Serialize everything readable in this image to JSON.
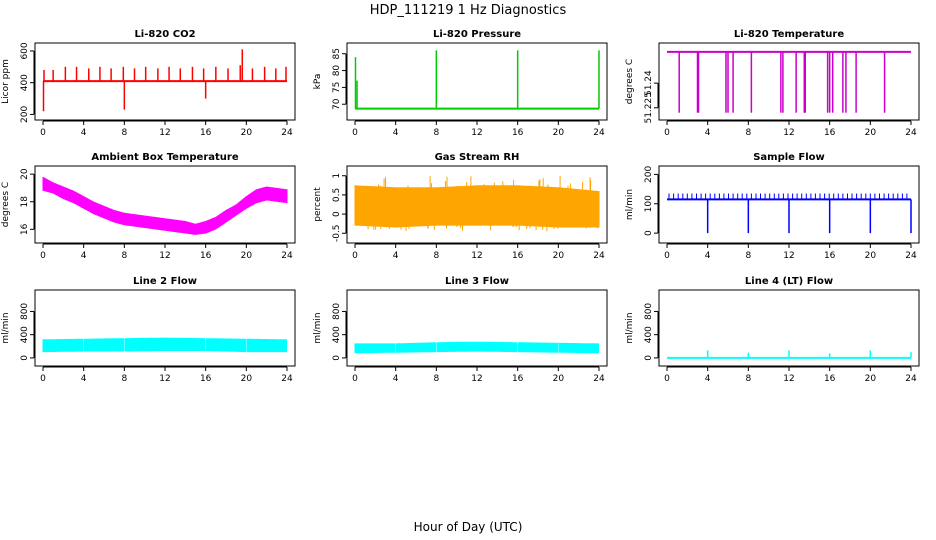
{
  "figure": {
    "title": "HDP_111219  1 Hz Diagnostics",
    "xlabel": "Hour of Day (UTC)"
  },
  "chart_data": [
    {
      "type": "line",
      "title": "Li-820 CO2",
      "ylabel": "Licor ppm",
      "color": "#ff0000",
      "xlim": [
        0,
        24
      ],
      "xticks": [
        0,
        4,
        8,
        12,
        16,
        20,
        24
      ],
      "ylim": [
        190,
        625
      ],
      "yticks": [
        200,
        400,
        600
      ],
      "base": 410,
      "spikes": [
        {
          "x": 0.05,
          "y": 220
        },
        {
          "x": 0.1,
          "y": 480
        },
        {
          "x": 1.0,
          "y": 480
        },
        {
          "x": 2.2,
          "y": 500
        },
        {
          "x": 3.3,
          "y": 500
        },
        {
          "x": 4.5,
          "y": 490
        },
        {
          "x": 5.6,
          "y": 500
        },
        {
          "x": 6.7,
          "y": 490
        },
        {
          "x": 7.9,
          "y": 500
        },
        {
          "x": 8.0,
          "y": 230
        },
        {
          "x": 9.0,
          "y": 490
        },
        {
          "x": 10.1,
          "y": 500
        },
        {
          "x": 11.3,
          "y": 490
        },
        {
          "x": 12.4,
          "y": 500
        },
        {
          "x": 13.5,
          "y": 490
        },
        {
          "x": 14.7,
          "y": 500
        },
        {
          "x": 15.8,
          "y": 490
        },
        {
          "x": 16.0,
          "y": 300
        },
        {
          "x": 17.0,
          "y": 500
        },
        {
          "x": 18.2,
          "y": 490
        },
        {
          "x": 19.4,
          "y": 510
        },
        {
          "x": 19.6,
          "y": 610
        },
        {
          "x": 20.6,
          "y": 490
        },
        {
          "x": 21.8,
          "y": 500
        },
        {
          "x": 22.9,
          "y": 490
        },
        {
          "x": 23.9,
          "y": 500
        }
      ]
    },
    {
      "type": "line",
      "title": "Li-820 Pressure",
      "ylabel": "kPa",
      "color": "#00cc00",
      "xlim": [
        0,
        24
      ],
      "xticks": [
        0,
        4,
        8,
        12,
        16,
        20,
        24
      ],
      "ylim": [
        66.5,
        87
      ],
      "yticks": [
        70,
        75,
        80,
        85
      ],
      "base": 68.7,
      "spikes": [
        {
          "x": 0.05,
          "y": 84
        },
        {
          "x": 0.2,
          "y": 77
        },
        {
          "x": 8.0,
          "y": 86
        },
        {
          "x": 16.0,
          "y": 86
        },
        {
          "x": 24.0,
          "y": 86
        }
      ]
    },
    {
      "type": "line",
      "title": "Li-820 Temperature",
      "ylabel": "degrees C",
      "color": "#cc00cc",
      "xlim": [
        0,
        24
      ],
      "xticks": [
        0,
        4,
        8,
        12,
        16,
        20,
        24
      ],
      "ylim": [
        51.22,
        51.262
      ],
      "yticks": [
        51.225,
        51.24
      ],
      "base": 51.259,
      "low": 51.222,
      "dips": [
        1.2,
        3.0,
        3.1,
        5.8,
        6.0,
        6.5,
        8.3,
        11.2,
        11.4,
        12.7,
        13.5,
        13.6,
        15.8,
        16.0,
        16.3,
        17.3,
        17.6,
        18.6,
        21.4
      ]
    },
    {
      "type": "band",
      "title": "Ambient Box Temperature",
      "ylabel": "degrees C",
      "color": "#ff00ff",
      "xlim": [
        0,
        24
      ],
      "xticks": [
        0,
        4,
        8,
        12,
        16,
        20,
        24
      ],
      "ylim": [
        15.3,
        20.3
      ],
      "yticks": [
        16,
        18,
        20
      ],
      "x": [
        0,
        1,
        2,
        3,
        4,
        5,
        6,
        7,
        8,
        9,
        10,
        11,
        12,
        13,
        14,
        15,
        16,
        17,
        18,
        19,
        20,
        21,
        22,
        23,
        24
      ],
      "low": [
        18.8,
        18.6,
        18.2,
        17.9,
        17.5,
        17.1,
        16.8,
        16.5,
        16.3,
        16.2,
        16.1,
        16.0,
        15.9,
        15.8,
        15.7,
        15.6,
        15.7,
        16.0,
        16.5,
        17.0,
        17.5,
        17.9,
        18.1,
        18.0,
        17.9
      ],
      "high": [
        19.8,
        19.4,
        19.1,
        18.8,
        18.4,
        18.0,
        17.7,
        17.4,
        17.2,
        17.1,
        17.0,
        16.9,
        16.8,
        16.7,
        16.6,
        16.4,
        16.6,
        16.9,
        17.4,
        17.8,
        18.4,
        18.9,
        19.1,
        19.0,
        18.9
      ]
    },
    {
      "type": "band",
      "title": "Gas Stream RH",
      "ylabel": "percent",
      "color": "#ffa500",
      "xlim": [
        0,
        24
      ],
      "xticks": [
        0,
        4,
        8,
        12,
        16,
        20,
        24
      ],
      "ylim": [
        -0.65,
        1.15
      ],
      "yticks": [
        -0.5,
        0,
        0.5,
        1
      ],
      "x": [
        0,
        4,
        8,
        12,
        16,
        20,
        24
      ],
      "low": [
        -0.3,
        -0.35,
        -0.3,
        -0.3,
        -0.3,
        -0.35,
        -0.35
      ],
      "high": [
        0.75,
        0.7,
        0.7,
        0.75,
        0.75,
        0.7,
        0.6
      ],
      "noise_low": -0.45,
      "noise_high": 1.05
    },
    {
      "type": "line",
      "title": "Sample Flow",
      "ylabel": "ml/min",
      "color": "#0000ff",
      "xlim": [
        0,
        24
      ],
      "xticks": [
        0,
        4,
        8,
        12,
        16,
        20,
        24
      ],
      "ylim": [
        -20,
        215
      ],
      "yticks": [
        0,
        100,
        200
      ],
      "base": 115,
      "upper": 135,
      "dips": [
        4,
        8,
        12,
        16,
        20,
        24
      ],
      "dip_value": 0
    },
    {
      "type": "band",
      "title": "Line 2 Flow",
      "ylabel": "ml/min",
      "color": "#00ffff",
      "xlim": [
        0,
        24
      ],
      "xticks": [
        0,
        4,
        8,
        12,
        16,
        20,
        24
      ],
      "ylim": [
        -70,
        1100
      ],
      "yticks": [
        0,
        400,
        800
      ],
      "x": [
        0,
        4,
        8,
        12,
        16,
        20,
        24
      ],
      "low": [
        100,
        110,
        110,
        120,
        120,
        100,
        100
      ],
      "high": [
        320,
        330,
        340,
        350,
        340,
        330,
        320
      ],
      "gaps": [
        4,
        8,
        12,
        16,
        20,
        24
      ]
    },
    {
      "type": "band",
      "title": "Line 3 Flow",
      "ylabel": "ml/min",
      "color": "#00ffff",
      "xlim": [
        0,
        24
      ],
      "xticks": [
        0,
        4,
        8,
        12,
        16,
        20,
        24
      ],
      "ylim": [
        -70,
        1100
      ],
      "yticks": [
        0,
        400,
        800
      ],
      "x": [
        0,
        4,
        8,
        12,
        16,
        20,
        24
      ],
      "low": [
        80,
        90,
        100,
        110,
        100,
        90,
        80
      ],
      "high": [
        250,
        250,
        270,
        280,
        270,
        260,
        250
      ],
      "gaps": [
        4,
        8,
        12,
        16,
        20,
        24
      ]
    },
    {
      "type": "line",
      "title": "Line 4 (LT) Flow",
      "ylabel": "ml/min",
      "color": "#00ffff",
      "xlim": [
        0,
        24
      ],
      "xticks": [
        0,
        4,
        8,
        12,
        16,
        20,
        24
      ],
      "ylim": [
        -70,
        1100
      ],
      "yticks": [
        0,
        400,
        800
      ],
      "base": 0,
      "spikes": [
        {
          "x": 4,
          "y": 130
        },
        {
          "x": 8,
          "y": 90
        },
        {
          "x": 12,
          "y": 130
        },
        {
          "x": 16,
          "y": 80
        },
        {
          "x": 20,
          "y": 130
        },
        {
          "x": 24,
          "y": 100
        }
      ]
    }
  ]
}
